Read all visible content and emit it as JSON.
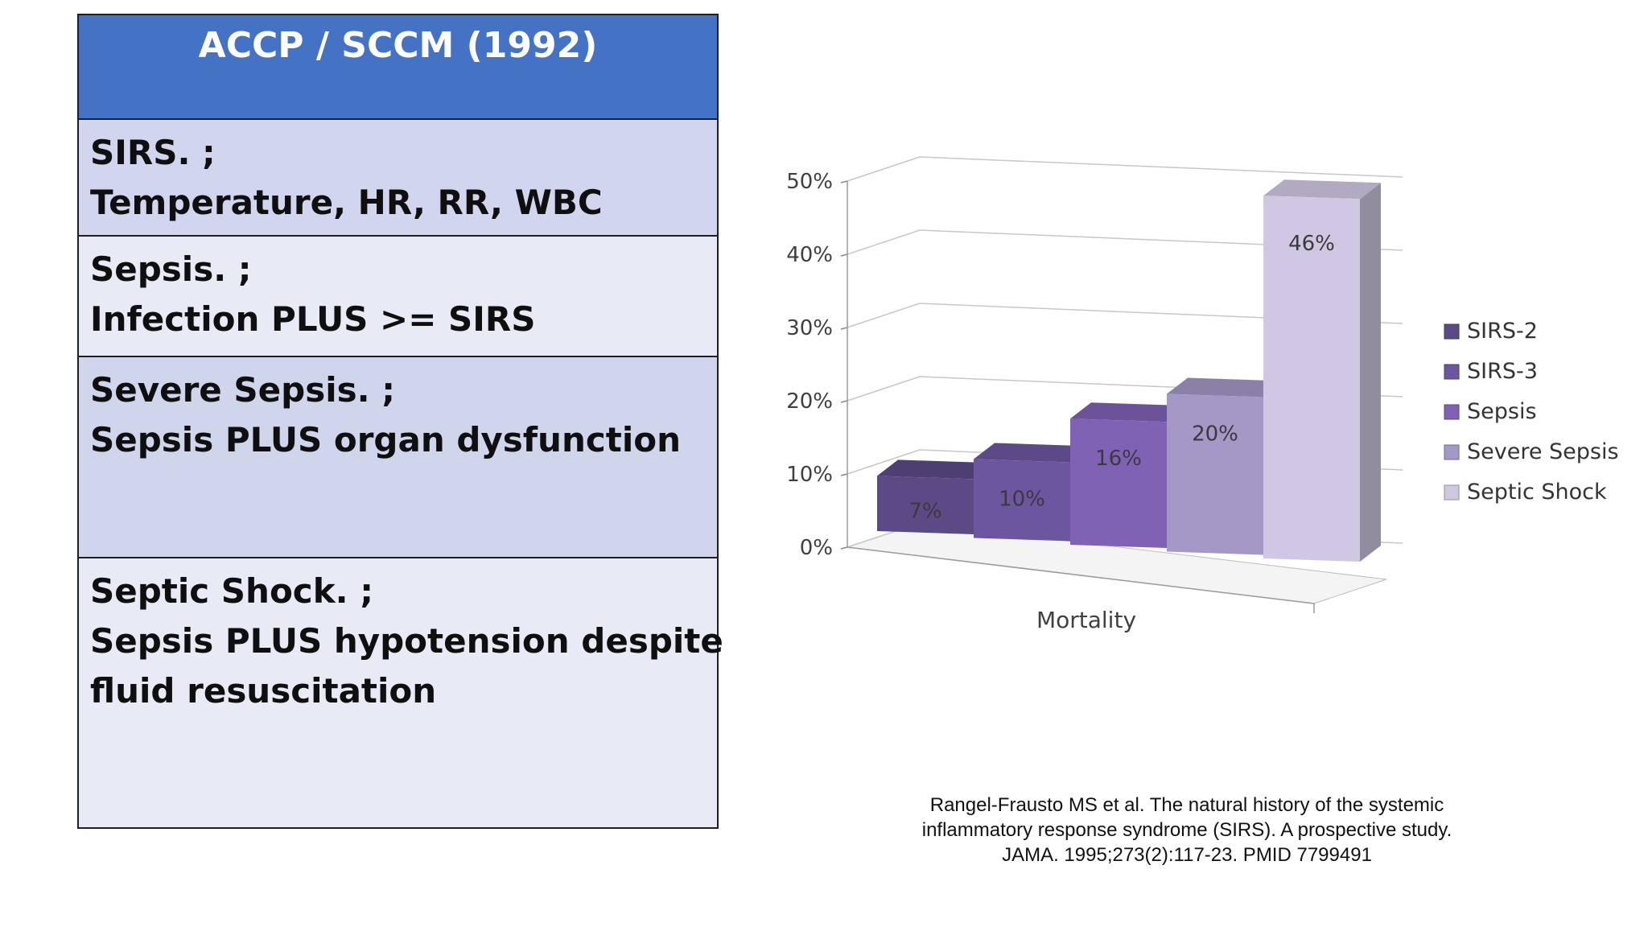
{
  "table": {
    "header": "ACCP / SCCM (1992)",
    "rows": [
      {
        "lines": [
          "SIRS. ;",
          "Temperature, HR, RR, WBC"
        ]
      },
      {
        "lines": [
          "Sepsis. ;",
          "Infection PLUS >= SIRS"
        ]
      },
      {
        "lines": [
          "Severe Sepsis. ;",
          "Sepsis PLUS organ dysfunction"
        ]
      },
      {
        "lines": [
          "Septic Shock. ;",
          "Sepsis PLUS hypotension despite",
          "fluid resuscitation"
        ]
      }
    ]
  },
  "chart_data": {
    "type": "bar",
    "categories": [
      "Mortality"
    ],
    "xlabel": "Mortality",
    "ylabel": "",
    "ylim": [
      0,
      50
    ],
    "yticks": [
      "0%",
      "10%",
      "20%",
      "30%",
      "40%",
      "50%"
    ],
    "grid": true,
    "legend_position": "right",
    "series": [
      {
        "name": "SIRS-2",
        "value": 7,
        "label": "7%",
        "color": "#5b4a86"
      },
      {
        "name": "SIRS-3",
        "value": 10,
        "label": "10%",
        "color": "#6c56a0"
      },
      {
        "name": "Sepsis",
        "value": 16,
        "label": "16%",
        "color": "#7f62b4"
      },
      {
        "name": "Severe Sepsis",
        "value": 20,
        "label": "20%",
        "color": "#a498c6"
      },
      {
        "name": "Septic Shock",
        "value": 46,
        "label": "46%",
        "color": "#d0c8e3"
      }
    ]
  },
  "citation": {
    "lines": [
      "Rangel-Frausto MS et al. The natural history of the systemic",
      "inflammatory response syndrome (SIRS). A prospective study.",
      "JAMA. 1995;273(2):117-23. PMID 7799491"
    ]
  }
}
